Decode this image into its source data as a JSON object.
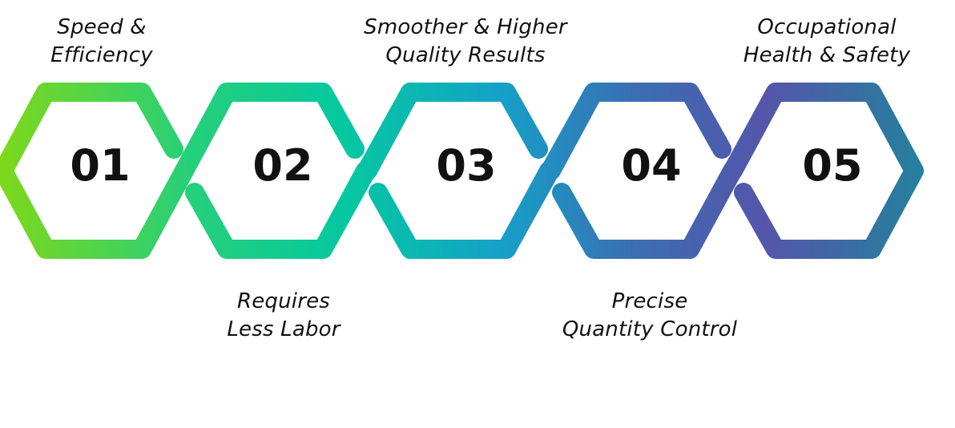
{
  "steps": [
    {
      "number": "01",
      "label_line1": "Speed &",
      "label_line2": "Efficiency",
      "label_position": "top"
    },
    {
      "number": "02",
      "label_line1": "Requires",
      "label_line2": "Less Labor",
      "label_position": "bottom"
    },
    {
      "number": "03",
      "label_line1": "Smoother & Higher",
      "label_line2": "Quality Results",
      "label_position": "top"
    },
    {
      "number": "04",
      "label_line1": "Precise",
      "label_line2": "Quantity Control",
      "label_position": "bottom"
    },
    {
      "number": "05",
      "label_line1": "Occupational",
      "label_line2": "Health & Safety",
      "label_position": "top"
    }
  ],
  "colors": {
    "gradient": [
      "#7ed81a",
      "#25d07a",
      "#05c8a0",
      "#14a2c8",
      "#3a6fb4",
      "#5555aa",
      "#1a8a9a"
    ],
    "text": "#111111"
  }
}
